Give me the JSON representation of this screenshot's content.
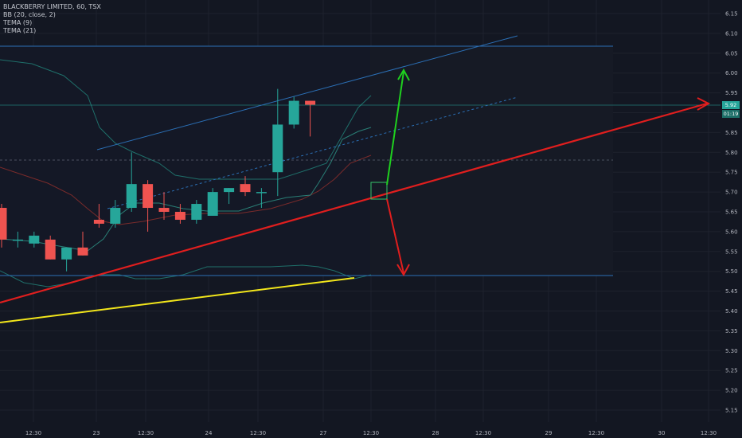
{
  "legend": {
    "symbol": "BLACKBERRY LIMITED, 60, TSX",
    "bb": "BB (20, close, 2)",
    "tema1": "TEMA (9)",
    "tema2": "TEMA (21)"
  },
  "price_tag": {
    "value": "5.92",
    "countdown": "01:19"
  },
  "colors": {
    "up": "#26a69a",
    "down": "#ef5350",
    "red_line": "#e01e1e",
    "green_arrow": "#1fd11f",
    "yellow_line": "#f2e61b",
    "channel": "#2b6fb5",
    "bands": "#1f6f6a"
  },
  "chart_data": {
    "type": "candlestick",
    "y_ticks": [
      "6.15",
      "6.10",
      "6.05",
      "6.00",
      "5.95",
      "5.90",
      "5.85",
      "5.80",
      "5.75",
      "5.70",
      "5.65",
      "5.60",
      "5.55",
      "5.50",
      "5.45",
      "5.40",
      "5.35",
      "5.30",
      "5.25",
      "5.20",
      "5.15"
    ],
    "x_ticks": [
      "12:30",
      "23",
      "12:30",
      "24",
      "12:30",
      "27",
      "12:30",
      "28",
      "12:30",
      "29",
      "12:30",
      "30",
      "12:30"
    ],
    "ylim": [
      5.125,
      6.175
    ],
    "candles": [
      {
        "o": 5.66,
        "h": 5.67,
        "l": 5.56,
        "c": 5.58
      },
      {
        "o": 5.58,
        "h": 5.6,
        "l": 5.56,
        "c": 5.58
      },
      {
        "o": 5.57,
        "h": 5.6,
        "l": 5.56,
        "c": 5.59
      },
      {
        "o": 5.58,
        "h": 5.59,
        "l": 5.53,
        "c": 5.53
      },
      {
        "o": 5.53,
        "h": 5.56,
        "l": 5.5,
        "c": 5.56
      },
      {
        "o": 5.56,
        "h": 5.6,
        "l": 5.54,
        "c": 5.54
      },
      {
        "o": 5.63,
        "h": 5.67,
        "l": 5.61,
        "c": 5.62
      },
      {
        "o": 5.62,
        "h": 5.68,
        "l": 5.61,
        "c": 5.66
      },
      {
        "o": 5.66,
        "h": 5.8,
        "l": 5.65,
        "c": 5.72
      },
      {
        "o": 5.72,
        "h": 5.73,
        "l": 5.6,
        "c": 5.66
      },
      {
        "o": 5.66,
        "h": 5.7,
        "l": 5.63,
        "c": 5.65
      },
      {
        "o": 5.65,
        "h": 5.67,
        "l": 5.62,
        "c": 5.63
      },
      {
        "o": 5.63,
        "h": 5.68,
        "l": 5.62,
        "c": 5.67
      },
      {
        "o": 5.64,
        "h": 5.71,
        "l": 5.64,
        "c": 5.7
      },
      {
        "o": 5.7,
        "h": 5.71,
        "l": 5.67,
        "c": 5.71
      },
      {
        "o": 5.72,
        "h": 5.74,
        "l": 5.69,
        "c": 5.7
      },
      {
        "o": 5.7,
        "h": 5.71,
        "l": 5.66,
        "c": 5.7
      },
      {
        "o": 5.75,
        "h": 5.96,
        "l": 5.69,
        "c": 5.87
      },
      {
        "o": 5.87,
        "h": 5.94,
        "l": 5.86,
        "c": 5.93
      },
      {
        "o": 5.93,
        "h": 5.93,
        "l": 5.84,
        "c": 5.92
      }
    ]
  }
}
